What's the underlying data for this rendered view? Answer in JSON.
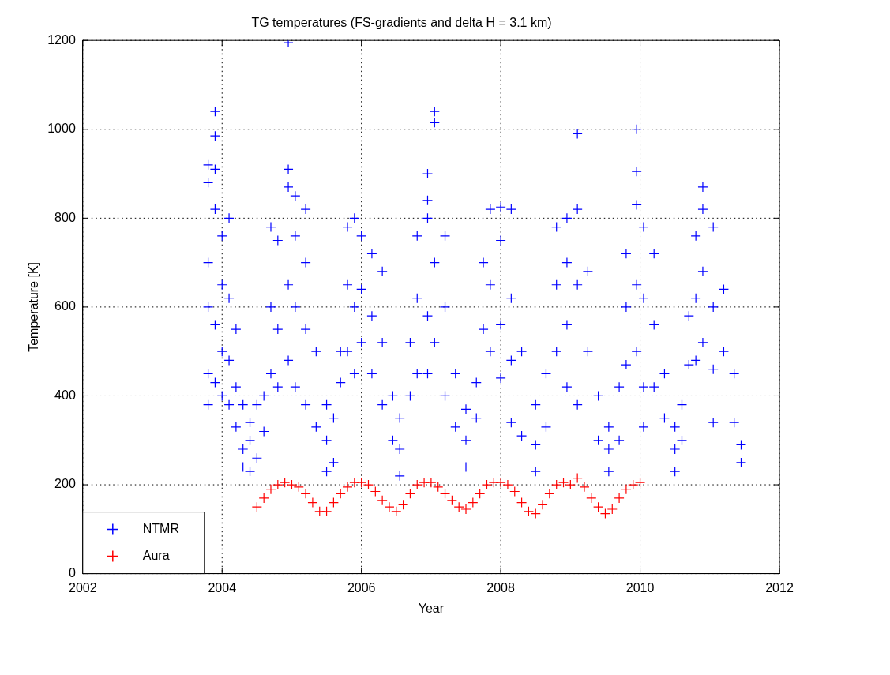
{
  "chart_data": {
    "type": "scatter",
    "title": "TG temperatures (FS-gradients and delta H = 3.1 km)",
    "xlabel": "Year",
    "ylabel": "Temperature [K]",
    "xlim": [
      2002,
      2012
    ],
    "xticks": [
      2002,
      2004,
      2006,
      2008,
      2010,
      2012
    ],
    "ylim": [
      0,
      1200
    ],
    "yticks": [
      0,
      200,
      400,
      600,
      800,
      1000,
      1200
    ],
    "grid": true,
    "legend": "bottom left",
    "marker": "cross",
    "series": [
      {
        "name": "NTMR",
        "color": "#0000ff",
        "x": [
          2003.8,
          2003.8,
          2003.8,
          2003.8,
          2003.8,
          2003.8,
          2003.9,
          2003.9,
          2003.9,
          2003.9,
          2003.9,
          2003.9,
          2004.0,
          2004.0,
          2004.0,
          2004.0,
          2004.1,
          2004.1,
          2004.1,
          2004.1,
          2004.2,
          2004.2,
          2004.2,
          2004.3,
          2004.3,
          2004.3,
          2004.4,
          2004.4,
          2004.4,
          2004.5,
          2004.5,
          2004.6,
          2004.6,
          2004.7,
          2004.7,
          2004.7,
          2004.8,
          2004.8,
          2004.8,
          2004.95,
          2004.95,
          2004.95,
          2004.95,
          2004.95,
          2005.05,
          2005.05,
          2005.05,
          2005.05,
          2005.2,
          2005.2,
          2005.2,
          2005.2,
          2005.35,
          2005.35,
          2005.5,
          2005.5,
          2005.5,
          2005.6,
          2005.6,
          2005.7,
          2005.7,
          2005.8,
          2005.8,
          2005.8,
          2005.9,
          2005.9,
          2005.9,
          2006.0,
          2006.0,
          2006.0,
          2006.15,
          2006.15,
          2006.15,
          2006.3,
          2006.3,
          2006.3,
          2006.45,
          2006.45,
          2006.55,
          2006.55,
          2006.55,
          2006.7,
          2006.7,
          2006.8,
          2006.8,
          2006.8,
          2006.95,
          2006.95,
          2006.95,
          2006.95,
          2006.95,
          2007.05,
          2007.05,
          2007.05,
          2007.05,
          2007.2,
          2007.2,
          2007.2,
          2007.35,
          2007.35,
          2007.5,
          2007.5,
          2007.5,
          2007.65,
          2007.65,
          2007.75,
          2007.75,
          2007.85,
          2007.85,
          2007.85,
          2008.0,
          2008.0,
          2008.0,
          2008.0,
          2008.15,
          2008.15,
          2008.15,
          2008.15,
          2008.3,
          2008.3,
          2008.5,
          2008.5,
          2008.5,
          2008.65,
          2008.65,
          2008.8,
          2008.8,
          2008.8,
          2008.95,
          2008.95,
          2008.95,
          2008.95,
          2009.1,
          2009.1,
          2009.1,
          2009.1,
          2009.25,
          2009.25,
          2009.4,
          2009.4,
          2009.55,
          2009.55,
          2009.55,
          2009.7,
          2009.7,
          2009.8,
          2009.8,
          2009.8,
          2009.95,
          2009.95,
          2009.95,
          2009.95,
          2009.95,
          2010.05,
          2010.05,
          2010.05,
          2010.05,
          2010.2,
          2010.2,
          2010.2,
          2010.35,
          2010.35,
          2010.5,
          2010.5,
          2010.5,
          2010.6,
          2010.6,
          2010.7,
          2010.7,
          2010.8,
          2010.8,
          2010.8,
          2010.9,
          2010.9,
          2010.9,
          2010.9,
          2011.05,
          2011.05,
          2011.05,
          2011.05,
          2011.2,
          2011.2,
          2011.35,
          2011.35,
          2011.45,
          2011.45
        ],
        "values": [
          880,
          920,
          600,
          450,
          380,
          700,
          1040,
          985,
          910,
          820,
          560,
          430,
          760,
          650,
          500,
          400,
          800,
          620,
          480,
          380,
          550,
          420,
          330,
          380,
          280,
          240,
          230,
          300,
          340,
          260,
          380,
          400,
          320,
          780,
          600,
          450,
          750,
          550,
          420,
          1195,
          910,
          870,
          650,
          480,
          850,
          760,
          600,
          420,
          820,
          700,
          550,
          380,
          500,
          330,
          230,
          300,
          380,
          250,
          350,
          500,
          430,
          780,
          650,
          500,
          800,
          600,
          450,
          760,
          640,
          520,
          720,
          580,
          450,
          680,
          520,
          380,
          400,
          300,
          220,
          280,
          350,
          400,
          520,
          760,
          620,
          450,
          900,
          840,
          800,
          580,
          450,
          1040,
          1015,
          700,
          520,
          760,
          600,
          400,
          450,
          330,
          240,
          300,
          370,
          350,
          430,
          700,
          550,
          820,
          650,
          500,
          825,
          750,
          560,
          440,
          820,
          620,
          480,
          340,
          500,
          310,
          230,
          290,
          380,
          330,
          450,
          780,
          650,
          500,
          800,
          700,
          560,
          420,
          990,
          820,
          650,
          380,
          680,
          500,
          400,
          300,
          230,
          330,
          280,
          300,
          420,
          720,
          600,
          470,
          1000,
          905,
          830,
          650,
          500,
          780,
          620,
          420,
          330,
          720,
          560,
          420,
          450,
          350,
          230,
          280,
          330,
          300,
          380,
          580,
          470,
          760,
          620,
          480,
          870,
          820,
          680,
          520,
          780,
          600,
          460,
          340,
          640,
          500,
          450,
          340,
          250,
          290
        ]
      },
      {
        "name": "Aura",
        "color": "#ff0000",
        "x": [
          2004.5,
          2004.6,
          2004.7,
          2004.8,
          2004.9,
          2005.0,
          2005.1,
          2005.2,
          2005.3,
          2005.4,
          2005.5,
          2005.6,
          2005.7,
          2005.8,
          2005.9,
          2006.0,
          2006.1,
          2006.2,
          2006.3,
          2006.4,
          2006.5,
          2006.6,
          2006.7,
          2006.8,
          2006.9,
          2007.0,
          2007.1,
          2007.2,
          2007.3,
          2007.4,
          2007.5,
          2007.6,
          2007.7,
          2007.8,
          2007.9,
          2008.0,
          2008.1,
          2008.2,
          2008.3,
          2008.4,
          2008.5,
          2008.6,
          2008.7,
          2008.8,
          2008.9,
          2009.0,
          2009.1,
          2009.2,
          2009.3,
          2009.4,
          2009.5,
          2009.6,
          2009.7,
          2009.8,
          2009.9,
          2010.0
        ],
        "values": [
          150,
          170,
          190,
          200,
          205,
          200,
          195,
          180,
          160,
          140,
          140,
          160,
          180,
          195,
          205,
          205,
          200,
          185,
          165,
          150,
          140,
          155,
          180,
          200,
          205,
          205,
          195,
          180,
          165,
          150,
          145,
          160,
          180,
          200,
          205,
          205,
          200,
          185,
          160,
          140,
          135,
          155,
          180,
          200,
          205,
          200,
          215,
          195,
          170,
          150,
          135,
          145,
          170,
          190,
          200,
          205
        ]
      }
    ]
  }
}
